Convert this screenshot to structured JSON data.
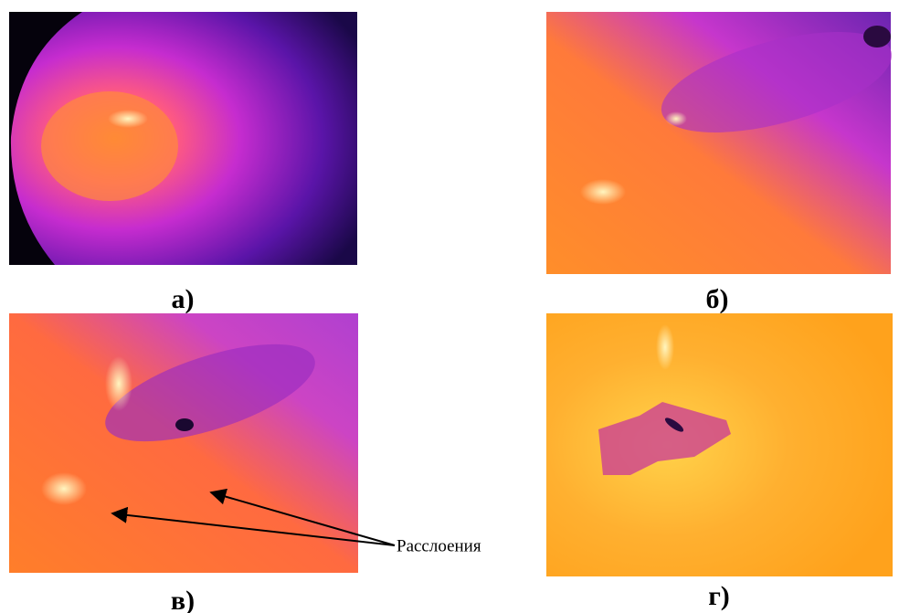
{
  "panels": [
    {
      "label": "а)"
    },
    {
      "label": "б)"
    },
    {
      "label": "в)"
    },
    {
      "label": "г)"
    }
  ],
  "annotation": "Расслоения"
}
